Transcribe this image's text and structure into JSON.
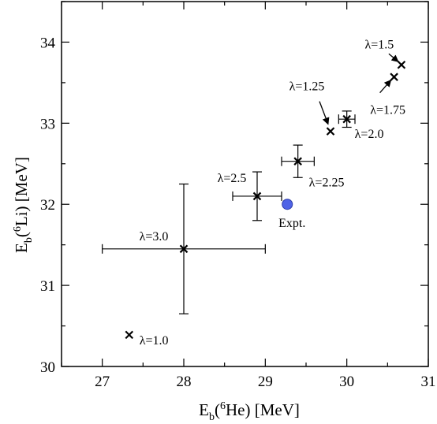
{
  "chart_data": {
    "type": "scatter",
    "title": "",
    "xlabel": {
      "base": "E",
      "sub": "b",
      "open": "(",
      "sup": "6",
      "nucleus": "He",
      "close": ") [MeV]"
    },
    "ylabel": {
      "base": "E",
      "sub": "b",
      "open": "(",
      "sup": "6",
      "nucleus": "Li",
      "close": ") [MeV]"
    },
    "xlim": [
      26.5,
      31
    ],
    "ylim": [
      30,
      34.5
    ],
    "xticks": [
      27,
      28,
      29,
      30,
      31
    ],
    "yticks": [
      30,
      31,
      32,
      33,
      34
    ],
    "x_tick_labels": [
      "27",
      "28",
      "29",
      "30",
      "31"
    ],
    "y_tick_labels": [
      "30",
      "31",
      "32",
      "33",
      "34"
    ],
    "grid": false,
    "marker_color": "#000000",
    "expt_color": "#4f63e6",
    "points": [
      {
        "label": "λ=1.0",
        "x": 27.33,
        "y": 30.39
      },
      {
        "label": "λ=1.25",
        "x": 29.8,
        "y": 32.9
      },
      {
        "label": "λ=1.5",
        "x": 30.67,
        "y": 33.72
      },
      {
        "label": "λ=1.75",
        "x": 30.58,
        "y": 33.57
      },
      {
        "label": "λ=2.0",
        "x": 30.0,
        "y": 33.05,
        "xerr": 0.1,
        "yerr": 0.1
      },
      {
        "label": "λ=2.25",
        "x": 29.4,
        "y": 32.53,
        "xerr": 0.2,
        "yerr": 0.2
      },
      {
        "label": "λ=2.5",
        "x": 28.9,
        "y": 32.1,
        "xerr": 0.3,
        "yerr": 0.3
      },
      {
        "label": "λ=3.0",
        "x": 28.0,
        "y": 31.45,
        "xerr": 1.0,
        "yerr": 0.8
      }
    ],
    "expt": {
      "label": "Expt.",
      "x": 29.27,
      "y": 32.0
    }
  }
}
